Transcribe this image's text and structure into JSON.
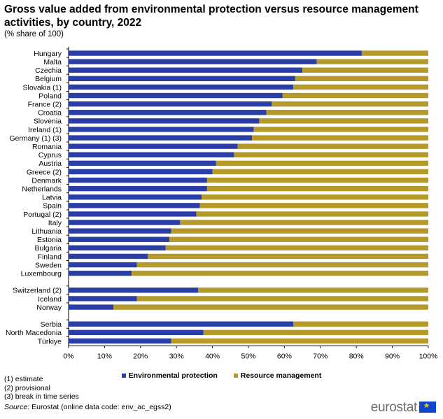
{
  "chart_data": {
    "type": "bar",
    "orientation": "horizontal",
    "stacked": true,
    "title": "Gross value added from environmental protection versus resource management activities, by country, 2022",
    "subtitle": "(% share of 100)",
    "xlim": [
      0,
      100
    ],
    "x_ticks": [
      "0%",
      "10%",
      "20%",
      "30%",
      "40%",
      "50%",
      "60%",
      "70%",
      "80%",
      "90%",
      "100%"
    ],
    "groups": [
      [
        "Hungary",
        "Malta",
        "Czechia",
        "Belgium",
        "Slovakia (1)",
        "Poland",
        "France (2)",
        "Croatia",
        "Slovenia",
        "Ireland (1)",
        "Germany (1) (3)",
        "Romania",
        "Cyprus",
        "Austria",
        "Greece (2)",
        "Denmark",
        "Netherlands",
        "Latvia",
        "Spain",
        "Portugal (2)",
        "Italy",
        "Lithuania",
        "Estonia",
        "Bulgaria",
        "Finland",
        "Sweden",
        "Luxembourg"
      ],
      [
        "Switzerland (2)",
        "Iceland",
        "Norway"
      ],
      [
        "Serbia",
        "North Macedonia",
        "Türkiye"
      ]
    ],
    "series": [
      {
        "name": "Environmental protection",
        "color": "#2a3ea8",
        "values": [
          81.5,
          69,
          65,
          63,
          62.5,
          59.5,
          56.5,
          55,
          53,
          51.5,
          51,
          47,
          46,
          41,
          40,
          38.5,
          38.5,
          37,
          36.5,
          35.5,
          31,
          28.5,
          28,
          27,
          22,
          19,
          17.5,
          36,
          19,
          12.5,
          62.5,
          37.5,
          28.5
        ]
      },
      {
        "name": "Resource management",
        "color": "#b59a2a",
        "values": [
          18.5,
          31,
          35,
          37,
          37.5,
          40.5,
          43.5,
          45,
          47,
          48.5,
          49,
          53,
          54,
          59,
          60,
          61.5,
          61.5,
          63,
          63.5,
          64.5,
          69,
          71.5,
          72,
          73,
          78,
          81,
          82.5,
          64,
          81,
          87.5,
          37.5,
          62.5,
          71.5
        ]
      }
    ],
    "legend": "bottom-center"
  },
  "notes": [
    "(1) estimate",
    "(2) provisional",
    "(3) break in time series"
  ],
  "source": {
    "label": "Source:",
    "text": " Eurostat (online data code: env_ac_egss2)"
  },
  "logo": "eurostat"
}
